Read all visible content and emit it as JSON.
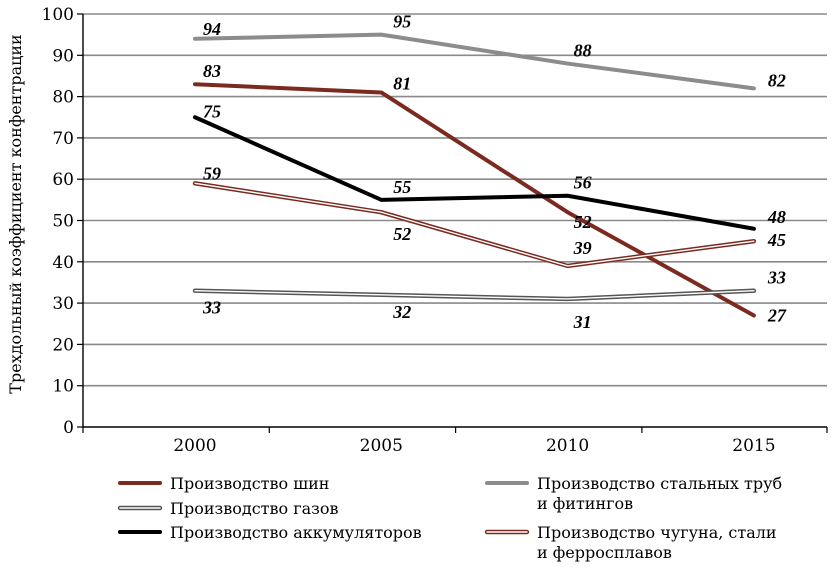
{
  "chart_data": {
    "type": "line",
    "title": "",
    "xlabel": "",
    "ylabel": "Трехдольный коэффициент конфентрации",
    "x": [
      "2000",
      "2005",
      "2010",
      "2015"
    ],
    "ylim": [
      0,
      100
    ],
    "yticks": [
      "0",
      "10",
      "20",
      "30",
      "40",
      "50",
      "60",
      "70",
      "80",
      "90",
      "100"
    ],
    "grid": true,
    "legend_placement": "bottom",
    "series": [
      {
        "name": "Производство шин",
        "values": [
          83,
          81,
          52,
          27
        ],
        "labels": [
          "83",
          "81",
          "52",
          "27"
        ],
        "color": "#7b2a20",
        "style": "thick"
      },
      {
        "name": "Производство стальных труб и фитингов",
        "name_lines": [
          "Производство стальных труб",
          "и фитингов"
        ],
        "values": [
          94,
          95,
          88,
          82
        ],
        "labels": [
          "94",
          "95",
          "88",
          "82"
        ],
        "color": "#8c8c8c",
        "style": "thick"
      },
      {
        "name": "Производство газов",
        "values": [
          33,
          32,
          31,
          33
        ],
        "labels": [
          "33",
          "32",
          "31",
          "33"
        ],
        "color": "#555555",
        "style": "double"
      },
      {
        "name": "Производство аккумуляторов",
        "values": [
          75,
          55,
          56,
          48
        ],
        "labels": [
          "75",
          "55",
          "56",
          "48"
        ],
        "color": "#000000",
        "style": "thick"
      },
      {
        "name": "Производство чугуна, стали и ферросплавов",
        "name_lines": [
          "Производство чугуна, стали",
          "и ферросплавов"
        ],
        "values": [
          59,
          52,
          39,
          45
        ],
        "labels": [
          "59",
          "52",
          "39",
          "45"
        ],
        "color": "#7b2a20",
        "style": "double"
      }
    ]
  }
}
